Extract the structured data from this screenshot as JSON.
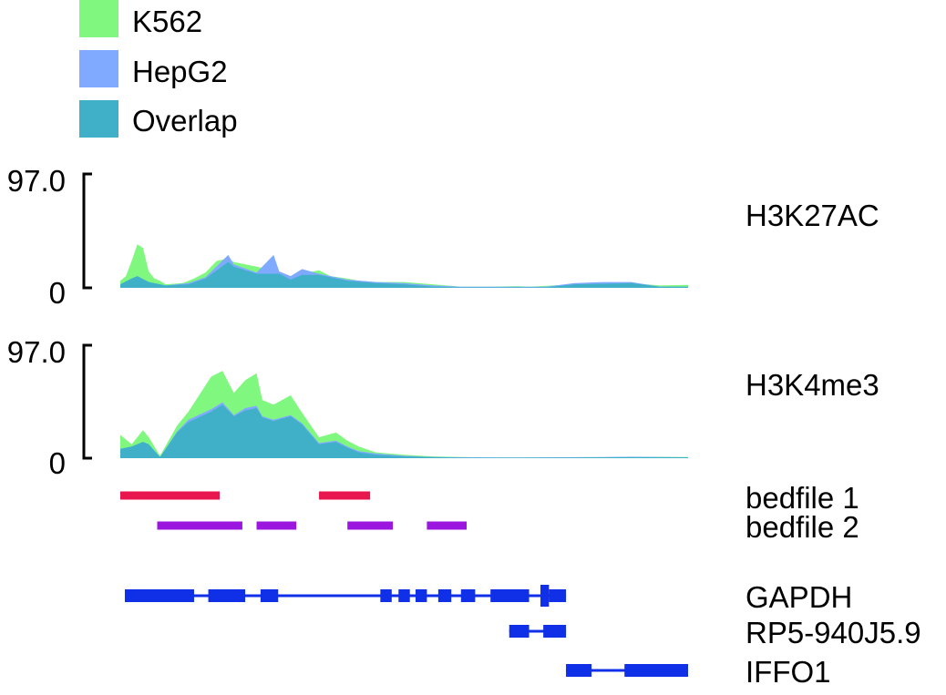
{
  "chart_data": {
    "type": "area",
    "legend": {
      "placement": "top-left",
      "items": [
        {
          "name": "K562",
          "color": "#80f880"
        },
        {
          "name": "HepG2",
          "color": "#80aaff"
        },
        {
          "name": "Overlap",
          "color": "#40b0c8"
        }
      ]
    },
    "x_domain": [
      0,
      1
    ],
    "tracks": [
      {
        "id": "h3k27ac",
        "label": "H3K27AC",
        "ymax_label": "97.0",
        "ymin_label": "0",
        "ylim": [
          0,
          97
        ],
        "k562": [
          [
            0,
            6
          ],
          [
            0.01,
            10
          ],
          [
            0.02,
            23
          ],
          [
            0.03,
            37
          ],
          [
            0.04,
            34
          ],
          [
            0.05,
            14
          ],
          [
            0.06,
            8
          ],
          [
            0.07,
            6
          ],
          [
            0.08,
            3
          ],
          [
            0.11,
            4
          ],
          [
            0.13,
            8
          ],
          [
            0.15,
            13
          ],
          [
            0.17,
            23
          ],
          [
            0.19,
            25
          ],
          [
            0.2,
            22
          ],
          [
            0.22,
            20
          ],
          [
            0.24,
            18
          ],
          [
            0.25,
            17
          ],
          [
            0.27,
            13
          ],
          [
            0.28,
            14
          ],
          [
            0.3,
            8
          ],
          [
            0.32,
            12
          ],
          [
            0.35,
            15
          ],
          [
            0.37,
            10
          ],
          [
            0.4,
            8
          ],
          [
            0.42,
            6
          ],
          [
            0.45,
            5
          ],
          [
            0.5,
            5
          ],
          [
            0.55,
            3
          ],
          [
            0.6,
            1
          ],
          [
            0.65,
            1
          ],
          [
            0.7,
            1.5
          ],
          [
            0.72,
            1
          ],
          [
            0.8,
            3
          ],
          [
            0.85,
            4
          ],
          [
            0.9,
            4
          ],
          [
            0.95,
            2
          ],
          [
            1,
            2.5
          ]
        ],
        "hepg2": [
          [
            0,
            3
          ],
          [
            0.02,
            8
          ],
          [
            0.03,
            10
          ],
          [
            0.05,
            5
          ],
          [
            0.08,
            2
          ],
          [
            0.12,
            4
          ],
          [
            0.15,
            9
          ],
          [
            0.19,
            28
          ],
          [
            0.2,
            20
          ],
          [
            0.24,
            13
          ],
          [
            0.27,
            28
          ],
          [
            0.28,
            14
          ],
          [
            0.3,
            10
          ],
          [
            0.32,
            16
          ],
          [
            0.35,
            12
          ],
          [
            0.4,
            7
          ],
          [
            0.45,
            5
          ],
          [
            0.5,
            4
          ],
          [
            0.55,
            2
          ],
          [
            0.6,
            1
          ],
          [
            0.65,
            1
          ],
          [
            0.75,
            1
          ],
          [
            0.8,
            4
          ],
          [
            0.85,
            5
          ],
          [
            0.9,
            5
          ],
          [
            0.95,
            1
          ],
          [
            1,
            1
          ]
        ],
        "overlap": [
          [
            0,
            3
          ],
          [
            0.02,
            8
          ],
          [
            0.03,
            10
          ],
          [
            0.05,
            5
          ],
          [
            0.08,
            2
          ],
          [
            0.12,
            3
          ],
          [
            0.15,
            8
          ],
          [
            0.19,
            22
          ],
          [
            0.2,
            18
          ],
          [
            0.24,
            12
          ],
          [
            0.27,
            12
          ],
          [
            0.28,
            12
          ],
          [
            0.3,
            7
          ],
          [
            0.32,
            11
          ],
          [
            0.35,
            11
          ],
          [
            0.4,
            6
          ],
          [
            0.45,
            4
          ],
          [
            0.5,
            3
          ],
          [
            0.55,
            1
          ],
          [
            0.6,
            0.5
          ],
          [
            0.65,
            0.5
          ],
          [
            0.75,
            0.5
          ],
          [
            0.8,
            3
          ],
          [
            0.85,
            3.5
          ],
          [
            0.9,
            4
          ],
          [
            0.95,
            1
          ],
          [
            1,
            1
          ]
        ]
      },
      {
        "id": "h3k4me3",
        "label": "H3K4me3",
        "ymax_label": "97.0",
        "ymin_label": "0",
        "ylim": [
          0,
          97
        ],
        "k562": [
          [
            0,
            20
          ],
          [
            0.02,
            12
          ],
          [
            0.04,
            24
          ],
          [
            0.05,
            18
          ],
          [
            0.07,
            2
          ],
          [
            0.1,
            28
          ],
          [
            0.12,
            40
          ],
          [
            0.16,
            70
          ],
          [
            0.18,
            75
          ],
          [
            0.2,
            56
          ],
          [
            0.22,
            67
          ],
          [
            0.24,
            73
          ],
          [
            0.25,
            50
          ],
          [
            0.27,
            46
          ],
          [
            0.3,
            54
          ],
          [
            0.32,
            39
          ],
          [
            0.35,
            18
          ],
          [
            0.38,
            22
          ],
          [
            0.4,
            15
          ],
          [
            0.42,
            10
          ],
          [
            0.45,
            5
          ],
          [
            0.5,
            3
          ],
          [
            0.55,
            1.5
          ],
          [
            0.6,
            1
          ],
          [
            0.65,
            0.5
          ],
          [
            0.8,
            0.5
          ],
          [
            0.9,
            1
          ],
          [
            1,
            1
          ]
        ],
        "hepg2": [
          [
            0,
            8
          ],
          [
            0.02,
            10
          ],
          [
            0.04,
            14
          ],
          [
            0.05,
            12
          ],
          [
            0.07,
            1
          ],
          [
            0.1,
            23
          ],
          [
            0.12,
            33
          ],
          [
            0.16,
            42
          ],
          [
            0.18,
            48
          ],
          [
            0.2,
            37
          ],
          [
            0.22,
            43
          ],
          [
            0.24,
            45
          ],
          [
            0.25,
            36
          ],
          [
            0.27,
            33
          ],
          [
            0.3,
            37
          ],
          [
            0.32,
            30
          ],
          [
            0.35,
            13
          ],
          [
            0.38,
            15
          ],
          [
            0.4,
            10
          ],
          [
            0.42,
            6
          ],
          [
            0.45,
            4
          ],
          [
            0.5,
            2
          ],
          [
            0.55,
            1
          ],
          [
            0.6,
            0.8
          ],
          [
            0.7,
            0.6
          ],
          [
            0.85,
            1
          ],
          [
            0.9,
            1.2
          ],
          [
            1,
            0.8
          ]
        ],
        "overlap": [
          [
            0,
            8
          ],
          [
            0.02,
            10
          ],
          [
            0.04,
            14
          ],
          [
            0.05,
            12
          ],
          [
            0.07,
            1
          ],
          [
            0.1,
            22
          ],
          [
            0.12,
            31
          ],
          [
            0.16,
            40
          ],
          [
            0.18,
            46
          ],
          [
            0.2,
            36
          ],
          [
            0.22,
            41
          ],
          [
            0.24,
            43
          ],
          [
            0.25,
            35
          ],
          [
            0.27,
            32
          ],
          [
            0.3,
            36
          ],
          [
            0.32,
            29
          ],
          [
            0.35,
            12
          ],
          [
            0.38,
            14
          ],
          [
            0.4,
            9
          ],
          [
            0.42,
            5
          ],
          [
            0.45,
            3
          ],
          [
            0.5,
            1.5
          ],
          [
            0.55,
            1
          ],
          [
            0.6,
            0.5
          ],
          [
            0.7,
            0.5
          ],
          [
            0.85,
            0.8
          ],
          [
            0.9,
            1
          ],
          [
            1,
            0.8
          ]
        ]
      }
    ],
    "bed_tracks": [
      {
        "label": "bedfile 1",
        "color": "#e8154f",
        "intervals": [
          [
            0.0,
            0.175
          ],
          [
            0.35,
            0.44
          ]
        ]
      },
      {
        "label": "bedfile 2",
        "color": "#9b17e0",
        "intervals": [
          [
            0.065,
            0.215
          ],
          [
            0.24,
            0.31
          ],
          [
            0.4,
            0.48
          ],
          [
            0.54,
            0.61
          ]
        ]
      }
    ],
    "genes": [
      {
        "label": "GAPDH",
        "color": "#1030e8",
        "span": [
          0.008,
          0.785
        ],
        "exons": [
          [
            0.008,
            0.13
          ],
          [
            0.155,
            0.22
          ],
          [
            0.247,
            0.278
          ],
          [
            0.458,
            0.478
          ],
          [
            0.49,
            0.51
          ],
          [
            0.52,
            0.54
          ],
          [
            0.56,
            0.583
          ],
          [
            0.6,
            0.625
          ],
          [
            0.652,
            0.72
          ],
          [
            0.74,
            0.755
          ],
          [
            0.755,
            0.785
          ]
        ]
      },
      {
        "label": "RP5-940J5.9",
        "color": "#1030e8",
        "span": [
          0.685,
          0.785
        ],
        "exons": [
          [
            0.685,
            0.72
          ],
          [
            0.745,
            0.785
          ]
        ]
      },
      {
        "label": "IFFO1",
        "color": "#1030e8",
        "span": [
          0.785,
          1.0
        ],
        "exons": [
          [
            0.785,
            0.83
          ],
          [
            0.888,
            1.0
          ]
        ]
      }
    ]
  }
}
